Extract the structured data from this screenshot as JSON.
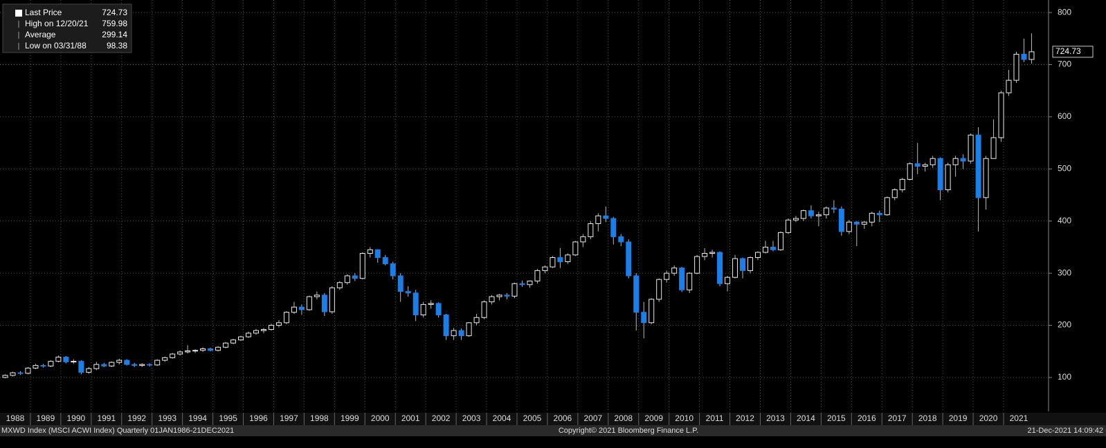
{
  "chart_data": {
    "type": "candlestick",
    "years": [
      "1988",
      "1989",
      "1990",
      "1991",
      "1992",
      "1993",
      "1994",
      "1995",
      "1996",
      "1997",
      "1998",
      "1999",
      "2000",
      "2001",
      "2002",
      "2003",
      "2004",
      "2005",
      "2006",
      "2007",
      "2008",
      "2009",
      "2010",
      "2011",
      "2012",
      "2013",
      "2014",
      "2015",
      "2016",
      "2017",
      "2018",
      "2019",
      "2020",
      "2021"
    ],
    "open": [
      100,
      104,
      109,
      108,
      118,
      123,
      122,
      131,
      139,
      130,
      131,
      110,
      117,
      125,
      122,
      129,
      133,
      125,
      123,
      125,
      124,
      133,
      138,
      145,
      149,
      151,
      152,
      155,
      152,
      158,
      166,
      172,
      178,
      185,
      190,
      192,
      200,
      205,
      225,
      235,
      230,
      255,
      258,
      226,
      272,
      282,
      295,
      290,
      338,
      345,
      330,
      318,
      295,
      265,
      262,
      220,
      240,
      242,
      220,
      180,
      190,
      180,
      205,
      215,
      245,
      255,
      258,
      256,
      280,
      278,
      285,
      305,
      312,
      330,
      322,
      335,
      360,
      370,
      395,
      410,
      405,
      370,
      360,
      295,
      225,
      205,
      250,
      288,
      300,
      310,
      268,
      300,
      332,
      338,
      340,
      280,
      292,
      328,
      305,
      330,
      340,
      350,
      345,
      378,
      402,
      405,
      420,
      410,
      412,
      425,
      423,
      380,
      398,
      394,
      398,
      415,
      412,
      445,
      460,
      480,
      510,
      505,
      508,
      520,
      460,
      508,
      520,
      515,
      565,
      445,
      520,
      560,
      646,
      670,
      720,
      710
    ],
    "high": [
      106,
      111,
      112,
      120,
      126,
      126,
      133,
      142,
      141,
      135,
      133,
      120,
      130,
      128,
      131,
      136,
      135,
      128,
      127,
      127,
      135,
      140,
      147,
      152,
      162,
      154,
      158,
      157,
      160,
      168,
      174,
      180,
      188,
      193,
      195,
      203,
      210,
      227,
      245,
      240,
      257,
      265,
      262,
      275,
      285,
      298,
      300,
      340,
      350,
      346,
      335,
      322,
      300,
      275,
      268,
      245,
      248,
      244,
      222,
      195,
      194,
      206,
      222,
      248,
      258,
      260,
      262,
      282,
      286,
      286,
      308,
      315,
      333,
      348,
      338,
      362,
      375,
      400,
      415,
      428,
      408,
      375,
      365,
      300,
      245,
      252,
      290,
      305,
      315,
      312,
      302,
      335,
      348,
      345,
      342,
      295,
      335,
      330,
      332,
      342,
      362,
      362,
      380,
      405,
      410,
      422,
      430,
      418,
      428,
      440,
      428,
      402,
      400,
      400,
      418,
      420,
      447,
      463,
      483,
      513,
      550,
      512,
      525,
      522,
      512,
      525,
      528,
      568,
      580,
      525,
      595,
      650,
      690,
      725,
      750,
      759.98
    ],
    "low": [
      98.38,
      102,
      105,
      106,
      116,
      119,
      120,
      129,
      127,
      126,
      106,
      107,
      114,
      120,
      120,
      125,
      123,
      120,
      120,
      121,
      122,
      130,
      136,
      142,
      146,
      147,
      149,
      150,
      150,
      156,
      164,
      170,
      176,
      182,
      185,
      190,
      196,
      202,
      222,
      220,
      228,
      250,
      218,
      222,
      268,
      278,
      285,
      288,
      330,
      320,
      315,
      288,
      245,
      255,
      208,
      215,
      232,
      215,
      172,
      172,
      172,
      178,
      200,
      212,
      240,
      248,
      250,
      252,
      274,
      272,
      280,
      300,
      310,
      310,
      318,
      333,
      350,
      365,
      380,
      398,
      355,
      352,
      290,
      190,
      175,
      202,
      245,
      282,
      295,
      264,
      262,
      298,
      325,
      330,
      275,
      265,
      290,
      290,
      300,
      325,
      338,
      342,
      343,
      375,
      398,
      400,
      405,
      390,
      405,
      415,
      372,
      375,
      352,
      385,
      390,
      398,
      410,
      440,
      455,
      478,
      490,
      495,
      502,
      440,
      455,
      485,
      500,
      510,
      380,
      422,
      520,
      552,
      640,
      665,
      705,
      702
    ],
    "close": [
      104,
      109,
      108,
      118,
      123,
      122,
      131,
      139,
      130,
      131,
      110,
      117,
      125,
      122,
      129,
      133,
      125,
      123,
      125,
      124,
      133,
      138,
      145,
      149,
      151,
      152,
      155,
      152,
      158,
      166,
      172,
      178,
      185,
      190,
      192,
      200,
      205,
      225,
      235,
      230,
      255,
      258,
      226,
      272,
      282,
      295,
      290,
      338,
      345,
      330,
      318,
      295,
      265,
      262,
      220,
      240,
      242,
      220,
      180,
      190,
      180,
      205,
      215,
      245,
      255,
      258,
      256,
      280,
      278,
      285,
      305,
      312,
      330,
      322,
      335,
      360,
      370,
      395,
      410,
      405,
      370,
      360,
      295,
      225,
      205,
      250,
      288,
      300,
      310,
      268,
      300,
      332,
      338,
      340,
      280,
      292,
      328,
      305,
      330,
      340,
      350,
      345,
      378,
      402,
      405,
      420,
      410,
      412,
      425,
      423,
      380,
      398,
      394,
      398,
      415,
      412,
      445,
      460,
      480,
      510,
      505,
      508,
      520,
      460,
      508,
      520,
      515,
      565,
      445,
      520,
      560,
      646,
      670,
      720,
      710,
      724.73
    ],
    "up_color": "#000000",
    "down_color": "#1a7fe8",
    "ylim": [
      35,
      824
    ],
    "yticks": [
      100,
      200,
      300,
      400,
      500,
      600,
      700,
      800
    ],
    "grid": true,
    "legend": [
      {
        "label": "Last Price",
        "value": 724.73
      },
      {
        "label": "High on 12/20/21",
        "value": 759.98
      },
      {
        "label": "Average",
        "value": 299.14
      },
      {
        "label": "Low on 03/31/88",
        "value": 98.38
      }
    ]
  },
  "footer": {
    "left": "MXWD Index (MSCI ACWI Index)  Quarterly 01JAN1986-21DEC2021",
    "center": "Copyright© 2021 Bloomberg Finance L.P.",
    "right": "21-Dec-2021 14:09:42"
  }
}
